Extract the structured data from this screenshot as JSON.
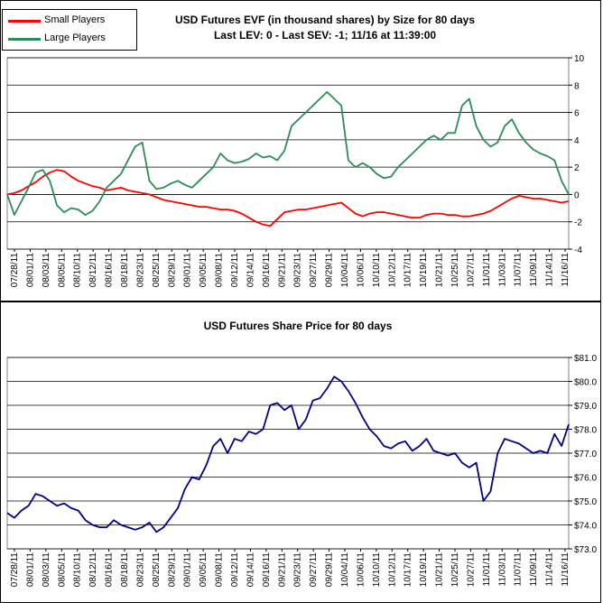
{
  "chart_data": [
    {
      "type": "line",
      "title": "USD Futures EVF (in thousand shares) by Size for 80 days",
      "subtitle": "Last LEV: 0 - Last SEV: -1; 11/16 at 11:39:00",
      "ylim": [
        -4,
        10
      ],
      "yticks": [
        "10",
        "8",
        "6",
        "4",
        "2",
        "0",
        "-2",
        "-4"
      ],
      "xticks": [
        "07/28/11",
        "08/01/11",
        "08/03/11",
        "08/05/11",
        "08/10/11",
        "08/12/11",
        "08/16/11",
        "08/18/11",
        "08/23/11",
        "08/25/11",
        "08/29/11",
        "09/01/11",
        "09/05/11",
        "09/08/11",
        "09/12/11",
        "09/14/11",
        "09/16/11",
        "09/21/11",
        "09/23/11",
        "09/27/11",
        "09/29/11",
        "10/04/11",
        "10/06/11",
        "10/10/11",
        "10/12/11",
        "10/17/11",
        "10/19/11",
        "10/21/11",
        "10/25/11",
        "10/27/11",
        "11/01/11",
        "11/03/11",
        "11/07/11",
        "11/09/11",
        "11/14/11",
        "11/16/11"
      ],
      "legend": {
        "position": "top-left",
        "entries": [
          "Small Players",
          "Large Players"
        ]
      },
      "grid": true,
      "series": [
        {
          "name": "Small Players",
          "color": "#ff0000",
          "values": [
            0.0,
            0.1,
            0.3,
            0.6,
            0.9,
            1.3,
            1.6,
            1.8,
            1.7,
            1.3,
            1.0,
            0.8,
            0.6,
            0.5,
            0.3,
            0.4,
            0.5,
            0.3,
            0.2,
            0.1,
            0.0,
            -0.2,
            -0.4,
            -0.5,
            -0.6,
            -0.7,
            -0.8,
            -0.9,
            -0.9,
            -1.0,
            -1.1,
            -1.1,
            -1.2,
            -1.4,
            -1.7,
            -2.0,
            -2.2,
            -2.3,
            -1.8,
            -1.3,
            -1.2,
            -1.1,
            -1.1,
            -1.0,
            -0.9,
            -0.8,
            -0.7,
            -0.6,
            -1.0,
            -1.4,
            -1.6,
            -1.4,
            -1.3,
            -1.3,
            -1.4,
            -1.5,
            -1.6,
            -1.7,
            -1.7,
            -1.5,
            -1.4,
            -1.4,
            -1.5,
            -1.5,
            -1.6,
            -1.6,
            -1.5,
            -1.4,
            -1.2,
            -0.9,
            -0.6,
            -0.3,
            -0.1,
            -0.2,
            -0.3,
            -0.3,
            -0.4,
            -0.5,
            -0.6,
            -0.5
          ]
        },
        {
          "name": "Large Players",
          "color": "#2e8b57",
          "values": [
            0.0,
            -1.5,
            -0.5,
            0.5,
            1.6,
            1.8,
            1.0,
            -0.8,
            -1.3,
            -1.0,
            -1.1,
            -1.5,
            -1.2,
            -0.5,
            0.5,
            1.0,
            1.5,
            2.5,
            3.5,
            3.8,
            1.0,
            0.4,
            0.5,
            0.8,
            1.0,
            0.7,
            0.5,
            1.0,
            1.5,
            2.0,
            3.0,
            2.5,
            2.3,
            2.4,
            2.6,
            3.0,
            2.7,
            2.8,
            2.5,
            3.2,
            5.0,
            5.5,
            6.0,
            6.5,
            7.0,
            7.5,
            7.0,
            6.5,
            2.5,
            2.0,
            2.3,
            2.0,
            1.5,
            1.2,
            1.3,
            2.0,
            2.5,
            3.0,
            3.5,
            4.0,
            4.3,
            4.0,
            4.5,
            4.5,
            6.5,
            7.0,
            5.0,
            4.0,
            3.5,
            3.8,
            5.0,
            5.5,
            4.5,
            3.8,
            3.3,
            3.0,
            2.8,
            2.5,
            1.0,
            0.0
          ]
        }
      ]
    },
    {
      "type": "line",
      "title": "USD Futures Share Price for 80 days",
      "ylim": [
        73.0,
        81.0
      ],
      "yticks": [
        "$81.0",
        "$80.0",
        "$79.0",
        "$78.0",
        "$77.0",
        "$76.0",
        "$75.0",
        "$74.0",
        "$73.0"
      ],
      "xticks": [
        "07/28/11",
        "08/01/11",
        "08/03/11",
        "08/05/11",
        "08/10/11",
        "08/12/11",
        "08/16/11",
        "08/18/11",
        "08/23/11",
        "08/25/11",
        "08/29/11",
        "09/01/11",
        "09/05/11",
        "09/08/11",
        "09/12/11",
        "09/14/11",
        "09/16/11",
        "09/21/11",
        "09/23/11",
        "09/27/11",
        "09/29/11",
        "10/04/11",
        "10/06/11",
        "10/10/11",
        "10/12/11",
        "10/17/11",
        "10/19/11",
        "10/21/11",
        "10/25/11",
        "10/27/11",
        "11/01/11",
        "11/03/11",
        "11/07/11",
        "11/09/11",
        "11/14/11",
        "11/16/11"
      ],
      "grid": true,
      "series": [
        {
          "color": "#000080",
          "values": [
            74.5,
            74.3,
            74.6,
            74.8,
            75.3,
            75.2,
            75.0,
            74.8,
            74.9,
            74.7,
            74.6,
            74.2,
            74.0,
            73.9,
            73.9,
            74.2,
            74.0,
            73.9,
            73.8,
            73.9,
            74.1,
            73.7,
            73.9,
            74.3,
            74.7,
            75.5,
            76.0,
            75.9,
            76.5,
            77.3,
            77.6,
            77.0,
            77.6,
            77.5,
            77.9,
            77.8,
            78.0,
            79.0,
            79.1,
            78.8,
            79.0,
            78.0,
            78.4,
            79.2,
            79.3,
            79.7,
            80.2,
            80.0,
            79.6,
            79.1,
            78.5,
            78.0,
            77.7,
            77.3,
            77.2,
            77.4,
            77.5,
            77.1,
            77.3,
            77.6,
            77.1,
            77.0,
            76.9,
            77.0,
            76.6,
            76.4,
            76.6,
            75.0,
            75.4,
            77.0,
            77.6,
            77.5,
            77.4,
            77.2,
            77.0,
            77.1,
            77.0,
            77.8,
            77.3,
            78.2
          ]
        }
      ]
    }
  ]
}
